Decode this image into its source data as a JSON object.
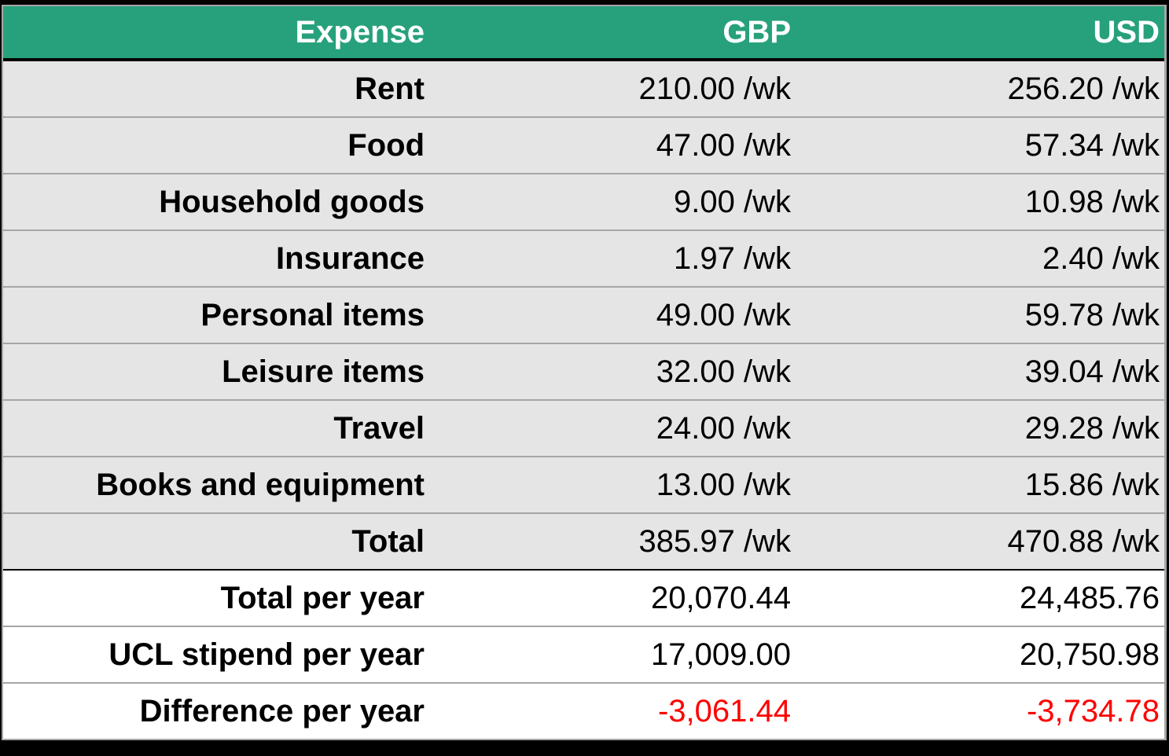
{
  "colors": {
    "header_bg": "#27a17c",
    "header_text": "#ffffff",
    "body_bg_weekly": "#e5e5e5",
    "body_bg_yearly": "#ffffff",
    "negative_text": "#ff0000",
    "grid_line": "#a6a6a6"
  },
  "table": {
    "headers": [
      "Expense",
      "GBP",
      "USD"
    ],
    "weekly_rows": [
      {
        "label": "Rent",
        "gbp": "210.00 /wk",
        "usd": "256.20 /wk"
      },
      {
        "label": "Food",
        "gbp": "47.00 /wk",
        "usd": "57.34 /wk"
      },
      {
        "label": "Household goods",
        "gbp": "9.00 /wk",
        "usd": "10.98 /wk"
      },
      {
        "label": "Insurance",
        "gbp": "1.97 /wk",
        "usd": "2.40 /wk"
      },
      {
        "label": "Personal items",
        "gbp": "49.00 /wk",
        "usd": "59.78 /wk"
      },
      {
        "label": "Leisure items",
        "gbp": "32.00 /wk",
        "usd": "39.04 /wk"
      },
      {
        "label": "Travel",
        "gbp": "24.00 /wk",
        "usd": "29.28 /wk"
      },
      {
        "label": "Books and equipment",
        "gbp": "13.00 /wk",
        "usd": "15.86 /wk"
      },
      {
        "label": "Total",
        "gbp": "385.97 /wk",
        "usd": "470.88 /wk"
      }
    ],
    "yearly_rows": [
      {
        "label": "Total per year",
        "gbp": "20,070.44",
        "usd": "24,485.76"
      },
      {
        "label": "UCL stipend per year",
        "gbp": "17,009.00",
        "usd": "20,750.98"
      },
      {
        "label": "Difference per year",
        "gbp": "-3,061.44",
        "usd": "-3,734.78"
      }
    ]
  },
  "chart_data": {
    "type": "table",
    "title": "",
    "columns": [
      "Expense",
      "GBP",
      "USD"
    ],
    "rows": [
      [
        "Rent",
        210.0,
        256.2
      ],
      [
        "Food",
        47.0,
        57.34
      ],
      [
        "Household goods",
        9.0,
        10.98
      ],
      [
        "Insurance",
        1.97,
        2.4
      ],
      [
        "Personal items",
        49.0,
        59.78
      ],
      [
        "Leisure items",
        32.0,
        39.04
      ],
      [
        "Travel",
        24.0,
        29.28
      ],
      [
        "Books and equipment",
        13.0,
        15.86
      ],
      [
        "Total",
        385.97,
        470.88
      ],
      [
        "Total per year",
        20070.44,
        24485.76
      ],
      [
        "UCL stipend per year",
        17009.0,
        20750.98
      ],
      [
        "Difference per year",
        -3061.44,
        -3734.78
      ]
    ],
    "units": {
      "weekly_rows": "/wk",
      "yearly_rows": "per year"
    }
  }
}
